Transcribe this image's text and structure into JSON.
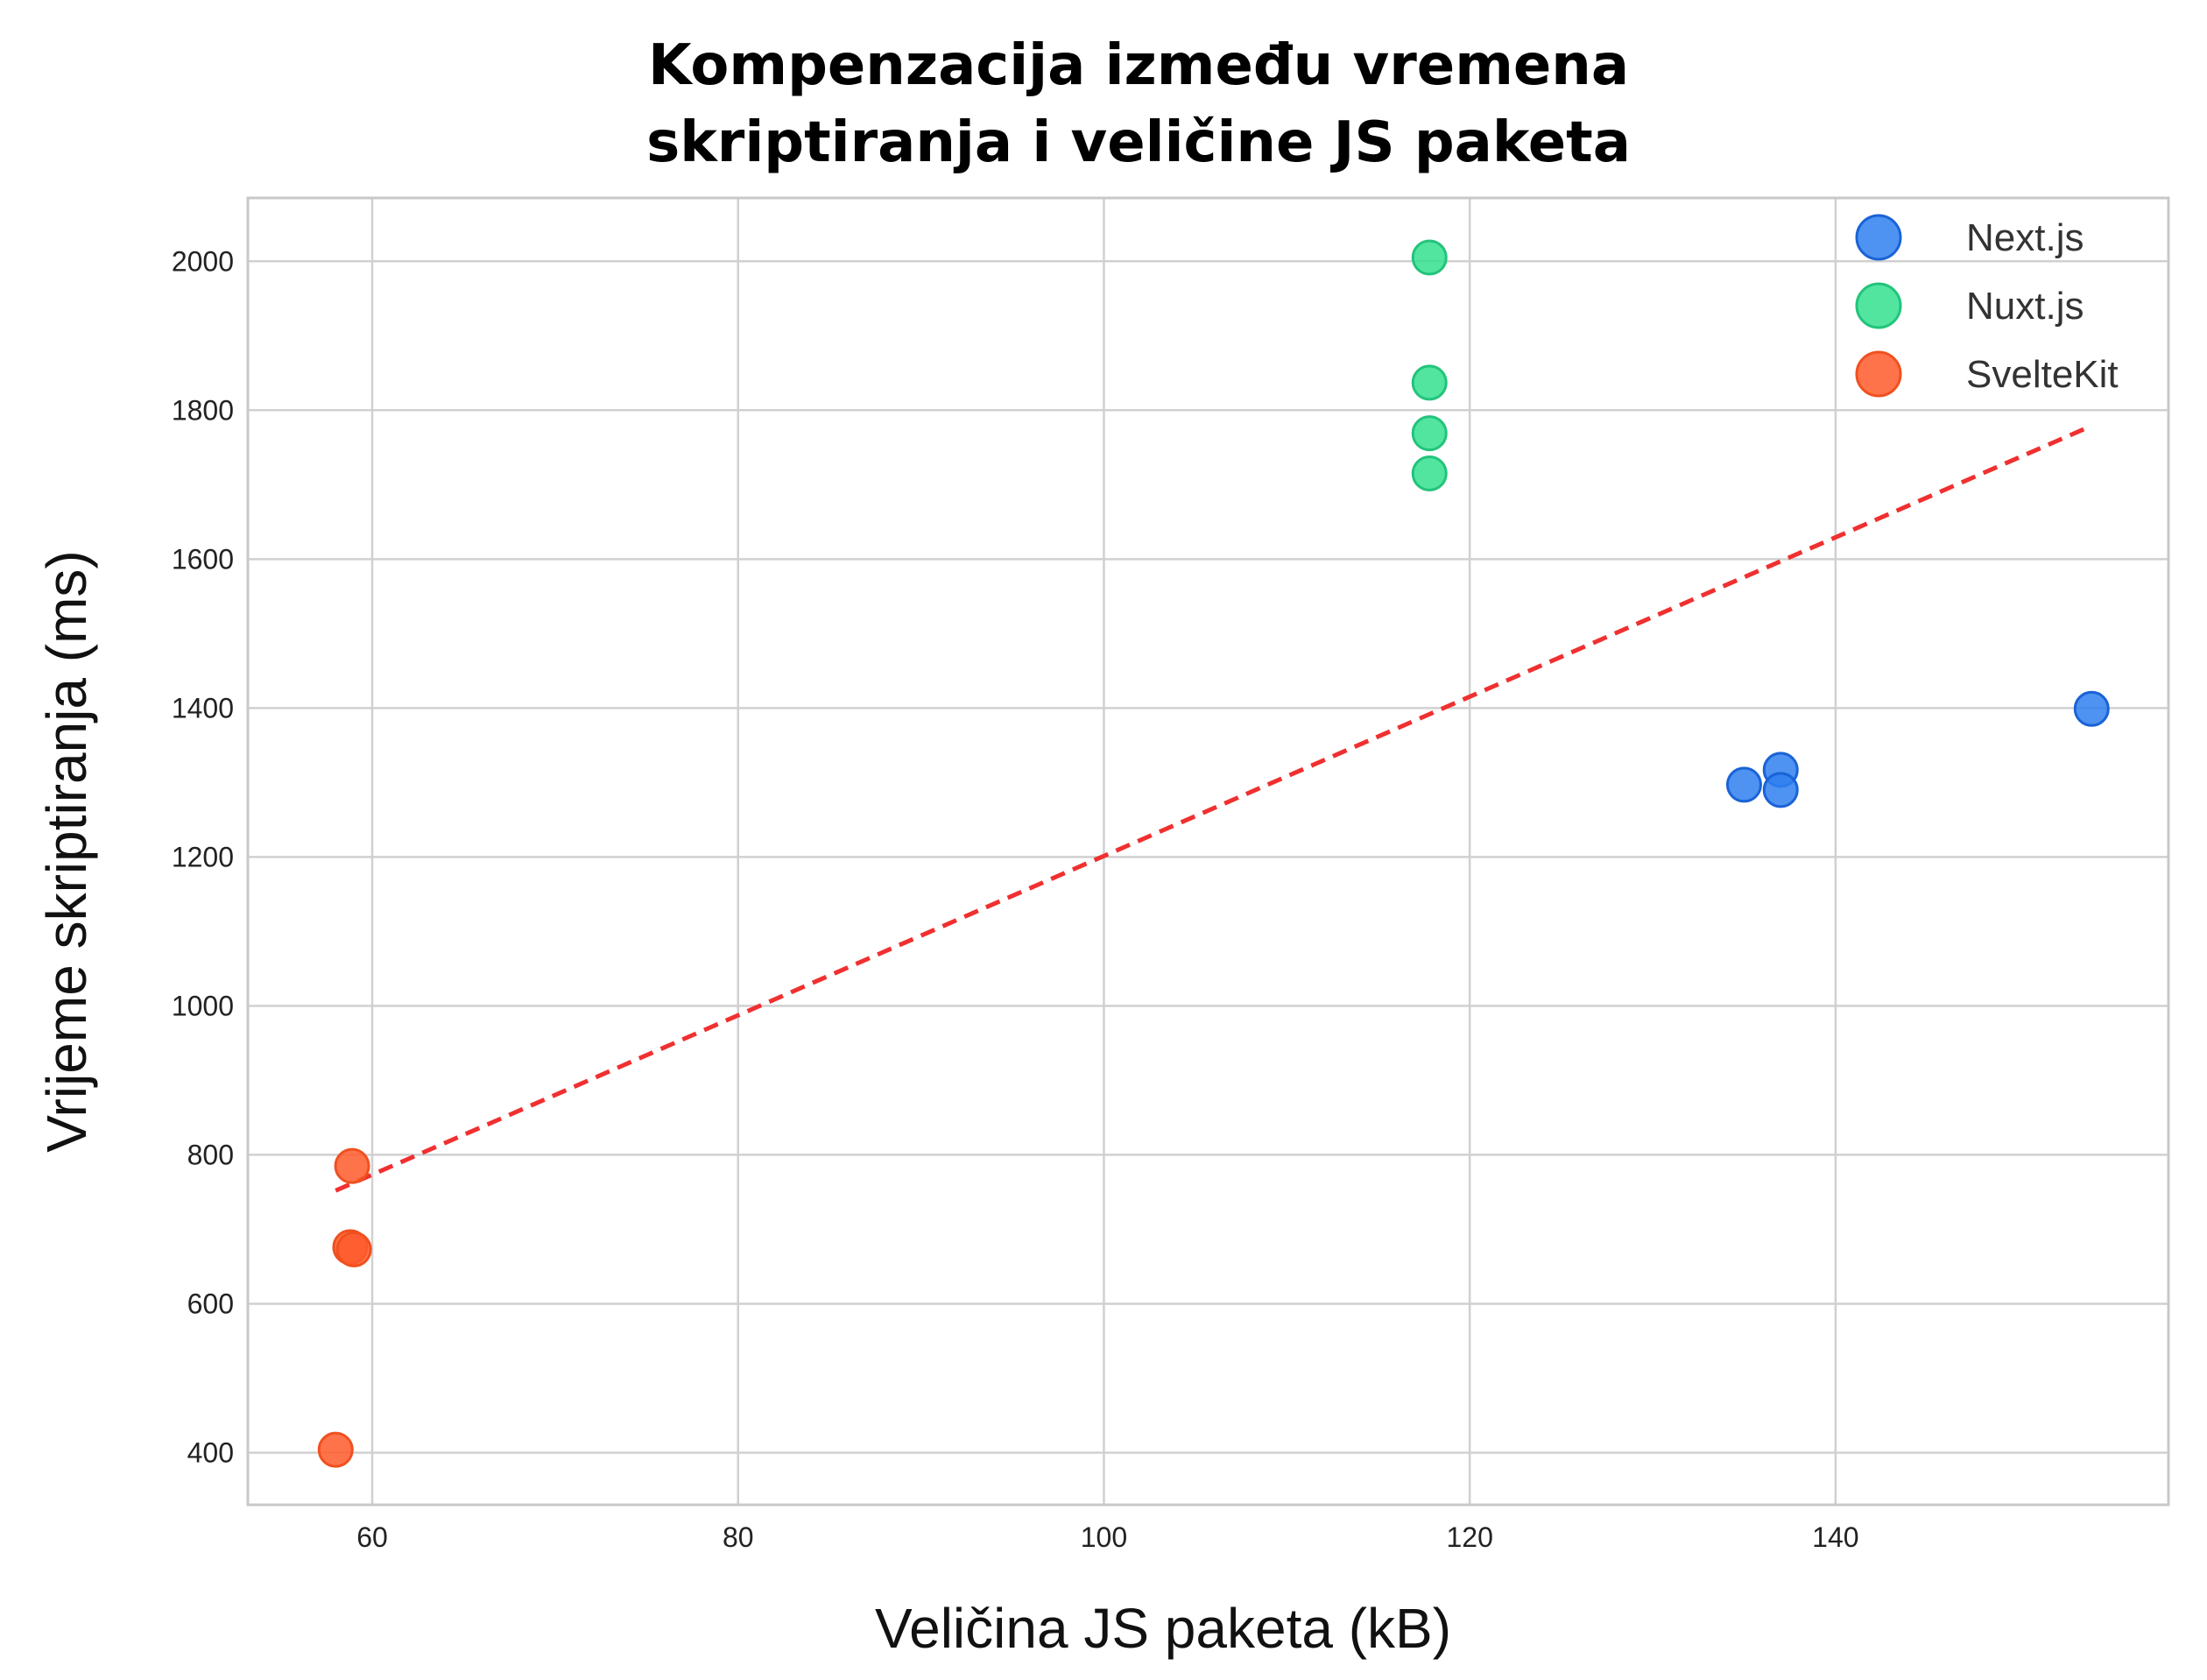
{
  "chart_data": {
    "type": "scatter",
    "title_lines": [
      "Kompenzacija između vremena",
      "skriptiranja i veličine JS paketa"
    ],
    "xlabel": "Veličina JS paketa (kB)",
    "ylabel": "Vrijeme skriptiranja (ms)",
    "xlim": [
      53.2,
      158.2
    ],
    "ylim": [
      330,
      2085
    ],
    "xticks": [
      60,
      80,
      100,
      120,
      140
    ],
    "yticks": [
      400,
      600,
      800,
      1000,
      1200,
      1400,
      1600,
      1800,
      2000
    ],
    "grid": true,
    "legend_position": "top-right",
    "series": [
      {
        "name": "Next.js",
        "color": "#2f7ff0",
        "edge_color": "#1a63d6",
        "points": [
          {
            "x": 135.0,
            "y": 1297
          },
          {
            "x": 137.0,
            "y": 1317
          },
          {
            "x": 137.0,
            "y": 1290
          },
          {
            "x": 154.0,
            "y": 1399
          }
        ]
      },
      {
        "name": "Nuxt.js",
        "color": "#34e08f",
        "edge_color": "#22c47a",
        "points": [
          {
            "x": 117.8,
            "y": 2005
          },
          {
            "x": 117.8,
            "y": 1837
          },
          {
            "x": 117.8,
            "y": 1769
          },
          {
            "x": 117.8,
            "y": 1715
          }
        ]
      },
      {
        "name": "SvelteKit",
        "color": "#ff5a2b",
        "edge_color": "#f0501f",
        "points": [
          {
            "x": 58.9,
            "y": 785
          },
          {
            "x": 58.8,
            "y": 676
          },
          {
            "x": 59.0,
            "y": 673
          },
          {
            "x": 58.0,
            "y": 404
          }
        ]
      }
    ],
    "trendline": {
      "style": "dashed",
      "color": "#f03030",
      "x": [
        58.0,
        154.0
      ],
      "y": [
        752,
        1779
      ]
    }
  }
}
